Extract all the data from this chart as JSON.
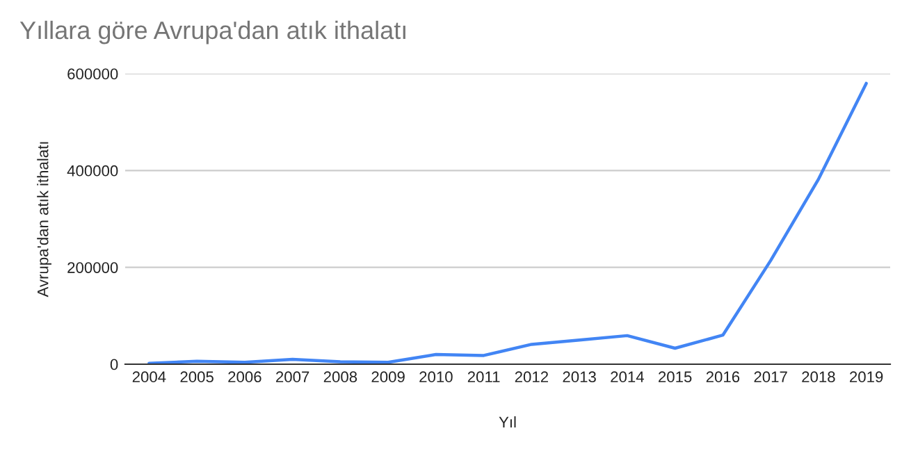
{
  "chart_data": {
    "type": "line",
    "title": "Yıllara göre Avrupa'dan atık ithalatı",
    "xlabel": "Yıl",
    "ylabel": "Avrupa'dan atık ithalatı",
    "categories": [
      "2004",
      "2005",
      "2006",
      "2007",
      "2008",
      "2009",
      "2010",
      "2011",
      "2012",
      "2013",
      "2014",
      "2015",
      "2016",
      "2017",
      "2018",
      "2019"
    ],
    "series": [
      {
        "color": "#4285f4",
        "values": [
          2000,
          6000,
          4000,
          10000,
          5000,
          4000,
          20000,
          18000,
          41000,
          50000,
          59000,
          33000,
          60000,
          214000,
          382000,
          580000
        ]
      }
    ],
    "ylim": [
      0,
      600000
    ],
    "yticks": [
      0,
      200000,
      400000,
      600000
    ],
    "grid": "y",
    "marker": "none",
    "line_style": "solid"
  }
}
